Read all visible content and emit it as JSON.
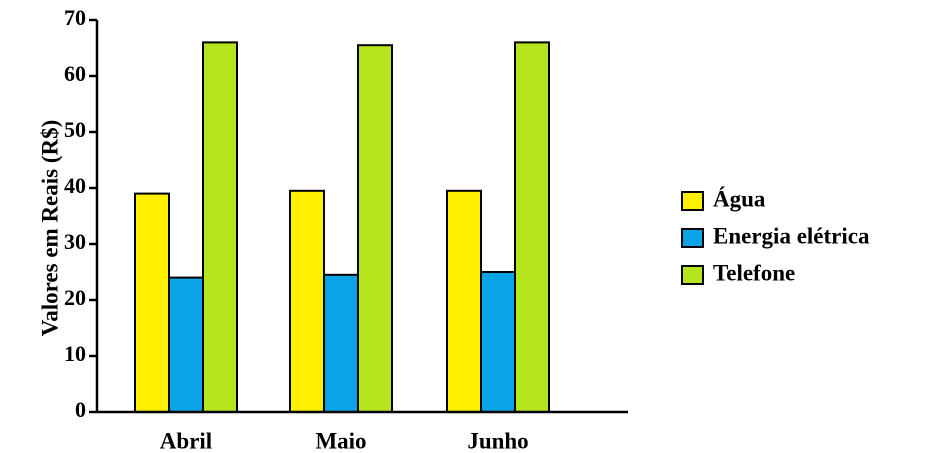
{
  "chart_data": {
    "type": "bar",
    "title": "",
    "xlabel": "",
    "ylabel": "Valores em Reais (R$)",
    "ylim": [
      0,
      70
    ],
    "yticks": [
      0,
      10,
      20,
      30,
      40,
      50,
      60,
      70
    ],
    "grid": false,
    "legend_position": "right",
    "categories": [
      "Abril",
      "Maio",
      "Junho"
    ],
    "series": [
      {
        "name": "Água",
        "color": "#ffef00",
        "values": [
          39,
          39.5,
          39.5
        ]
      },
      {
        "name": "Energia elétrica",
        "color": "#0aa3e6",
        "values": [
          24,
          24.5,
          25
        ]
      },
      {
        "name": "Telefone",
        "color": "#b5e61d",
        "values": [
          66,
          65.5,
          66
        ]
      }
    ]
  }
}
